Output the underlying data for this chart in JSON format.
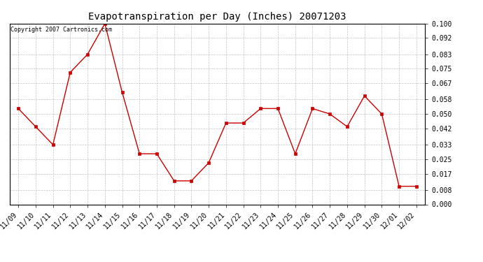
{
  "title": "Evapotranspiration per Day (Inches) 20071203",
  "copyright_text": "Copyright 2007 Cartronics.com",
  "x_labels": [
    "11/09",
    "11/10",
    "11/11",
    "11/12",
    "11/13",
    "11/14",
    "11/15",
    "11/16",
    "11/17",
    "11/18",
    "11/19",
    "11/20",
    "11/21",
    "11/22",
    "11/23",
    "11/24",
    "11/25",
    "11/26",
    "11/27",
    "11/28",
    "11/29",
    "11/30",
    "12/01",
    "12/02"
  ],
  "y_values": [
    0.053,
    0.043,
    0.033,
    0.073,
    0.083,
    0.1,
    0.062,
    0.028,
    0.028,
    0.013,
    0.013,
    0.023,
    0.045,
    0.045,
    0.053,
    0.053,
    0.028,
    0.053,
    0.05,
    0.043,
    0.06,
    0.05,
    0.01,
    0.01
  ],
  "line_color": "#cc0000",
  "marker_color": "#cc0000",
  "marker_face": "#cc0000",
  "bg_color": "#ffffff",
  "plot_bg_color": "#ffffff",
  "grid_color": "#aaaaaa",
  "ylim": [
    0.0,
    0.1
  ],
  "yticks": [
    0.0,
    0.008,
    0.017,
    0.025,
    0.033,
    0.042,
    0.05,
    0.058,
    0.067,
    0.075,
    0.083,
    0.092,
    0.1
  ],
  "ytick_labels": [
    "0.000",
    "0.008",
    "0.017",
    "0.025",
    "0.033",
    "0.042",
    "0.050",
    "0.058",
    "0.067",
    "0.075",
    "0.083",
    "0.092",
    "0.100"
  ],
  "title_fontsize": 10,
  "tick_fontsize": 7,
  "copyright_fontsize": 6
}
